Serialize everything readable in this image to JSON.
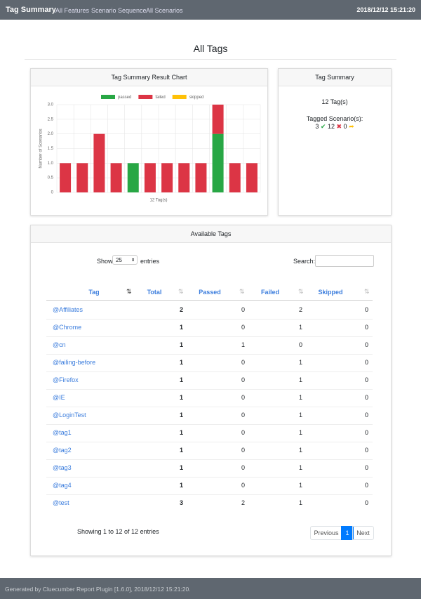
{
  "navbar": {
    "brand": "Tag Summary",
    "links": [
      "All Features",
      "Scenario Sequence",
      "All Scenarios"
    ],
    "timestamp": "2018/12/12 15:21:20"
  },
  "page_title": "All Tags",
  "chart_data": {
    "type": "bar",
    "title": "Tag Summary Result Chart",
    "stacked": true,
    "x_label": "12 Tag(s)",
    "y_label": "Number of Scenarios",
    "categories": [
      null,
      null,
      null,
      null,
      null,
      null,
      null,
      null,
      null,
      null,
      null,
      null
    ],
    "series": [
      {
        "name": "passed",
        "color": "#28a745",
        "values": [
          0,
          0,
          0,
          0,
          1,
          0,
          0,
          0,
          0,
          2,
          0,
          0
        ]
      },
      {
        "name": "failed",
        "color": "#dc3545",
        "values": [
          1,
          1,
          2,
          1,
          0,
          1,
          1,
          1,
          1,
          1,
          1,
          1
        ]
      },
      {
        "name": "skipped",
        "color": "#ffc107",
        "values": [
          0,
          0,
          0,
          0,
          0,
          0,
          0,
          0,
          0,
          0,
          0,
          0
        ]
      }
    ],
    "ylim": [
      0,
      3
    ],
    "yticks": [
      0,
      0.5,
      {
        "value": 1,
        "label": "1.0"
      },
      {
        "value": 1.5,
        "label": "1.5"
      },
      {
        "value": 2,
        "label": "2.0"
      },
      {
        "value": 2.5,
        "label": "2.5"
      },
      {
        "value": 3,
        "label": "3.0"
      }
    ],
    "grid": true,
    "legend": "top"
  },
  "summary_card": {
    "title": "Tag Summary",
    "tag_count": "12 Tag(s)",
    "tagged_label": "Tagged Scenario(s):",
    "passed": 3,
    "failed": 12,
    "skipped": 0
  },
  "tags_card": {
    "title": "Available Tags",
    "show_label": "Show",
    "page_size": "25",
    "entries_label": "entries",
    "search_label": "Search:",
    "columns": [
      "Tag",
      "Total",
      "Passed",
      "Failed",
      "Skipped"
    ],
    "rows": [
      [
        "@Affiliates",
        2,
        0,
        2,
        0
      ],
      [
        "@Chrome",
        1,
        0,
        1,
        0
      ],
      [
        "@cn",
        1,
        1,
        0,
        0
      ],
      [
        "@failing-before",
        1,
        0,
        1,
        0
      ],
      [
        "@Firefox",
        1,
        0,
        1,
        0
      ],
      [
        "@IE",
        1,
        0,
        1,
        0
      ],
      [
        "@LoginTest",
        1,
        0,
        1,
        0
      ],
      [
        "@tag1",
        1,
        0,
        1,
        0
      ],
      [
        "@tag2",
        1,
        0,
        1,
        0
      ],
      [
        "@tag3",
        1,
        0,
        1,
        0
      ],
      [
        "@tag4",
        1,
        0,
        1,
        0
      ],
      [
        "@test",
        3,
        2,
        1,
        0
      ]
    ],
    "info": "Showing 1 to 12 of 12 entries",
    "pagination": [
      "Previous",
      "1",
      "Next"
    ]
  },
  "footer": "Generated by Cluecumber Report Plugin [1.6.0], 2018/12/12 15:21:20."
}
